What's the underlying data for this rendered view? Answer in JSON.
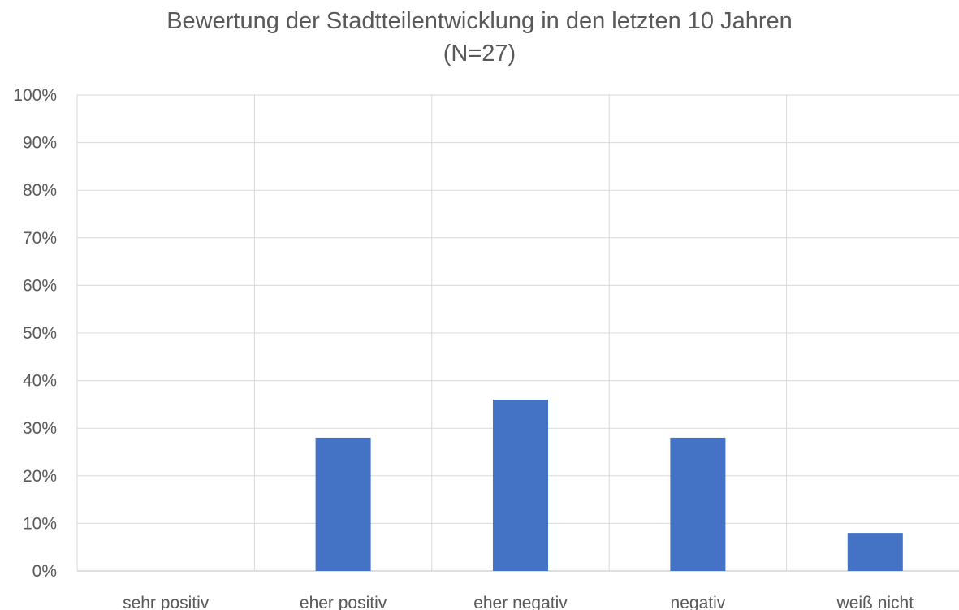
{
  "chart_data": {
    "type": "bar",
    "title_line1": "Bewertung der Stadtteilentwicklung in den letzten 10 Jahren",
    "title_line2": "(N=27)",
    "categories": [
      "sehr positiv",
      "eher positiv",
      "eher negativ",
      "negativ",
      "weiß nicht"
    ],
    "values": [
      0,
      28,
      36,
      28,
      8
    ],
    "unit": "%",
    "ylim": [
      0,
      100
    ],
    "yticks": [
      "0%",
      "10%",
      "20%",
      "30%",
      "40%",
      "50%",
      "60%",
      "70%",
      "80%",
      "90%",
      "100%"
    ],
    "grid": true,
    "bar_color": "#4472C4",
    "legend": "none"
  }
}
